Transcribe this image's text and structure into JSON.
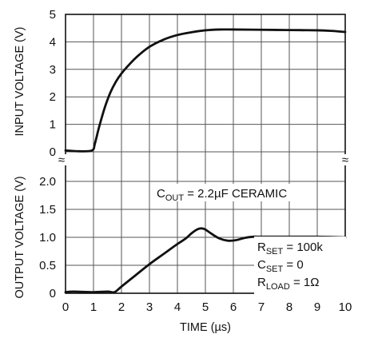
{
  "chart_data": {
    "type": "line",
    "xlabel": "TIME (µs)",
    "x_range": [
      0,
      10
    ],
    "x_ticks": [
      "0",
      "1",
      "2",
      "3",
      "4",
      "5",
      "6",
      "7",
      "8",
      "9",
      "10"
    ],
    "grid": true,
    "axis_break_symbol": "≈",
    "top_panel": {
      "ylabel": "INPUT VOLTAGE (V)",
      "y_range": [
        0,
        5
      ],
      "y_ticks": [
        "0",
        "1",
        "2",
        "3",
        "4",
        "5"
      ],
      "series": [
        {
          "x": [
            0,
            0.5,
            0.95,
            1.05,
            1.2,
            1.4,
            1.6,
            1.8,
            2.0,
            2.3,
            2.6,
            3.0,
            3.5,
            4.0,
            4.5,
            5.0,
            5.5,
            6.0,
            7.0,
            8.0,
            9.0,
            9.5,
            10.0
          ],
          "y": [
            0.05,
            0.02,
            0.05,
            0.3,
            0.9,
            1.6,
            2.15,
            2.55,
            2.85,
            3.2,
            3.5,
            3.82,
            4.08,
            4.25,
            4.35,
            4.42,
            4.45,
            4.45,
            4.44,
            4.43,
            4.42,
            4.4,
            4.36
          ]
        }
      ]
    },
    "bottom_panel": {
      "ylabel": "OUTPUT VOLTAGE (V)",
      "y_range": [
        0,
        2.0
      ],
      "y_ticks": [
        "0",
        "0.5",
        "1.0",
        "1.5",
        "2.0"
      ],
      "series": [
        {
          "x": [
            0,
            0.3,
            1.0,
            1.5,
            1.75,
            2.0,
            2.5,
            3.0,
            3.5,
            4.0,
            4.3,
            4.5,
            4.7,
            4.85,
            5.0,
            5.2,
            5.5,
            5.8,
            6.1,
            6.4,
            6.7,
            7.0,
            8.0,
            9.0,
            10.0
          ],
          "y": [
            0.02,
            0.03,
            0.02,
            0.03,
            0.02,
            0.12,
            0.32,
            0.52,
            0.7,
            0.88,
            0.98,
            1.07,
            1.14,
            1.16,
            1.14,
            1.07,
            0.98,
            0.94,
            0.95,
            0.99,
            1.01,
            1.01,
            1.01,
            1.01,
            1.0
          ]
        }
      ]
    },
    "annotations": {
      "cout": {
        "main": "C",
        "sub": "OUT",
        "rest": " = 2.2µF CERAMIC"
      },
      "rset": {
        "main": "R",
        "sub": "SET",
        "rest": " = 100k"
      },
      "cset": {
        "main": "C",
        "sub": "SET",
        "rest": " = 0"
      },
      "rload": {
        "main": "R",
        "sub": "LOAD",
        "rest": " = 1Ω"
      }
    }
  }
}
